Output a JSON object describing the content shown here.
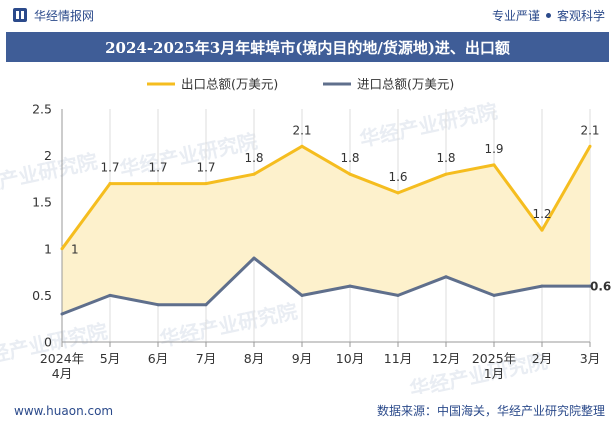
{
  "header": {
    "brand": "华经情报网",
    "slogan_left": "专业严谨",
    "slogan_right": "客观科学"
  },
  "title": "2024-2025年3月年蚌埠市(境内目的地/货源地)进、出口额",
  "footer": {
    "url": "www.huaon.com",
    "source": "数据来源：中国海关，华经产业研究院整理"
  },
  "watermark": "华经产业研究院",
  "colors": {
    "export": "#f5bd1f",
    "import": "#5f6f8c",
    "fill": "#fdf1cc",
    "title_bg": "#3f5d97",
    "brand": "#2b4a8b"
  },
  "chart_data": {
    "type": "line",
    "categories": [
      [
        "2024年",
        "4月"
      ],
      [
        "5月"
      ],
      [
        "6月"
      ],
      [
        "7月"
      ],
      [
        "8月"
      ],
      [
        "9月"
      ],
      [
        "10月"
      ],
      [
        "11月"
      ],
      [
        "12月"
      ],
      [
        "2025年",
        "1月"
      ],
      [
        "2月"
      ],
      [
        "3月"
      ]
    ],
    "series": [
      {
        "name": "出口总额(万美元)",
        "values": [
          1,
          1.7,
          1.7,
          1.7,
          1.8,
          2.1,
          1.8,
          1.6,
          1.8,
          1.9,
          1.2,
          2.1
        ],
        "labels": [
          "1",
          "1.7",
          "1.7",
          "1.7",
          "1.8",
          "2.1",
          "1.8",
          "1.6",
          "1.8",
          "1.9",
          "1.2",
          "2.1"
        ]
      },
      {
        "name": "进口总额(万美元)",
        "values": [
          0.3,
          0.5,
          0.4,
          0.4,
          0.9,
          0.5,
          0.6,
          0.5,
          0.7,
          0.5,
          0.6,
          0.6
        ],
        "labels": [
          "",
          "",
          "",
          "",
          "",
          "",
          "",
          "",
          "",
          "",
          "",
          "0.6"
        ]
      }
    ],
    "ylim": [
      0,
      2.5
    ],
    "yticks": [
      0,
      0.5,
      1,
      1.5,
      2,
      2.5
    ],
    "ytick_labels": [
      "0",
      "0.5",
      "1",
      "1.5",
      "2",
      "2.5"
    ],
    "grid": "vertical",
    "legend": "top-center"
  }
}
